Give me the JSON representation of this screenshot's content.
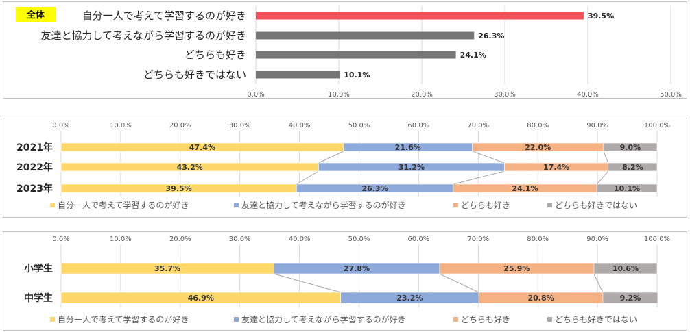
{
  "chart_data": [
    {
      "type": "bar",
      "badge": "全体",
      "categories": [
        "自分一人で考えて学習するのが好き",
        "友達と協力して考えながら学習するのが好き",
        "どちらも好き",
        "どちらも好きではない"
      ],
      "values": [
        39.5,
        26.3,
        24.1,
        10.1
      ],
      "value_labels": [
        "39.5%",
        "26.3%",
        "24.1%",
        "10.1%"
      ],
      "tick_labels": [
        "0.0%",
        "10.0%",
        "20.0%",
        "30.0%",
        "40.0%",
        "50.0%"
      ],
      "xlim": [
        0,
        50
      ],
      "grid": true,
      "colors": [
        "#f4515a",
        "#767676",
        "#767676",
        "#767676"
      ]
    },
    {
      "type": "bar",
      "stacked": true,
      "categories": [
        "2021年",
        "2022年",
        "2023年"
      ],
      "series": [
        {
          "name": "自分一人で考えて学習するのが好き",
          "values": [
            47.4,
            43.2,
            39.5
          ],
          "labels": [
            "47.4%",
            "43.2%",
            "39.5%"
          ],
          "color": "#fdd869"
        },
        {
          "name": "友達と協力して考えながら学習するのが好き",
          "values": [
            21.6,
            31.2,
            26.3
          ],
          "labels": [
            "21.6%",
            "31.2%",
            "26.3%"
          ],
          "color": "#8eaadb"
        },
        {
          "name": "どちらも好き",
          "values": [
            22.0,
            17.4,
            24.1
          ],
          "labels": [
            "22.0%",
            "17.4%",
            "24.1%"
          ],
          "color": "#f4b183"
        },
        {
          "name": "どちらも好きではない",
          "values": [
            9.0,
            8.2,
            10.1
          ],
          "labels": [
            "9.0%",
            "8.2%",
            "10.1%"
          ],
          "color": "#aeaaaa"
        }
      ],
      "tick_labels": [
        "0.0%",
        "10.0%",
        "20.0%",
        "30.0%",
        "40.0%",
        "50.0%",
        "60.0%",
        "70.0%",
        "80.0%",
        "90.0%",
        "100.0%"
      ],
      "xlim": [
        0,
        100
      ],
      "grid": true,
      "legend": "bottom"
    },
    {
      "type": "bar",
      "stacked": true,
      "categories": [
        "小学生",
        "中学生"
      ],
      "series": [
        {
          "name": "自分一人で考えて学習するのが好き",
          "values": [
            35.7,
            46.9
          ],
          "labels": [
            "35.7%",
            "46.9%"
          ],
          "color": "#fdd869"
        },
        {
          "name": "友達と協力して考えながら学習するのが好き",
          "values": [
            27.8,
            23.2
          ],
          "labels": [
            "27.8%",
            "23.2%"
          ],
          "color": "#8eaadb"
        },
        {
          "name": "どちらも好き",
          "values": [
            25.9,
            20.8
          ],
          "labels": [
            "25.9%",
            "20.8%"
          ],
          "color": "#f4b183"
        },
        {
          "name": "どちらも好きではない",
          "values": [
            10.6,
            9.2
          ],
          "labels": [
            "10.6%",
            "9.2%"
          ],
          "color": "#aeaaaa"
        }
      ],
      "tick_labels": [
        "0.0%",
        "10.0%",
        "20.0%",
        "30.0%",
        "40.0%",
        "50.0%",
        "60.0%",
        "70.0%",
        "80.0%",
        "90.0%",
        "100.0%"
      ],
      "xlim": [
        0,
        100
      ],
      "grid": true,
      "legend": "bottom"
    }
  ]
}
